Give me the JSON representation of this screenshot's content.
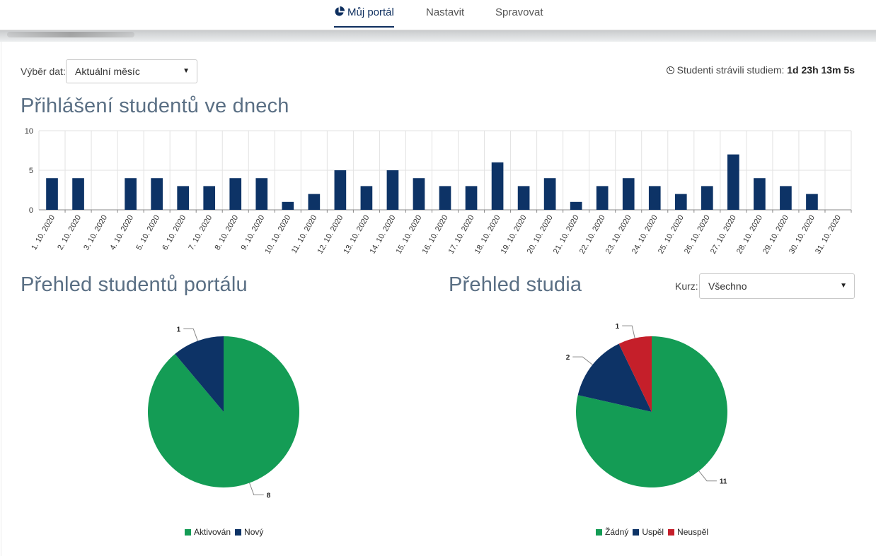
{
  "nav": {
    "items": [
      {
        "label": "Můj portál",
        "active": true,
        "icon": "pie-chart-icon"
      },
      {
        "label": "Nastavit",
        "active": false
      },
      {
        "label": "Spravovat",
        "active": false
      }
    ]
  },
  "filters": {
    "date_label": "Výběr dat:",
    "date_value": "Aktuální měsíc",
    "course_label": "Kurz:",
    "course_value": "Všechno"
  },
  "study_time": {
    "prefix": "Studenti strávili studiem:",
    "value": "1d 23h 13m 5s",
    "icon": "clock-icon"
  },
  "sections": {
    "logins_title": "Přihlášení studentů ve dnech",
    "students_title": "Přehled studentů portálu",
    "study_title": "Přehled studia"
  },
  "colors": {
    "bar": "#0d3366",
    "green": "#149c55",
    "navy": "#0d3366",
    "red": "#c51f2a",
    "nav_active": "#0d2e5e"
  },
  "chart_data": [
    {
      "type": "bar",
      "categories": [
        "1. 10. 2020",
        "2. 10. 2020",
        "3. 10. 2020",
        "4. 10. 2020",
        "5. 10. 2020",
        "6. 10. 2020",
        "7. 10. 2020",
        "8. 10. 2020",
        "9. 10. 2020",
        "10. 10. 2020",
        "11. 10. 2020",
        "12. 10. 2020",
        "13. 10. 2020",
        "14. 10. 2020",
        "15. 10. 2020",
        "16. 10. 2020",
        "17. 10. 2020",
        "18. 10. 2020",
        "19. 10. 2020",
        "20. 10. 2020",
        "21. 10. 2020",
        "22. 10. 2020",
        "23. 10. 2020",
        "24. 10. 2020",
        "25. 10. 2020",
        "26. 10. 2020",
        "27. 10. 2020",
        "28. 10. 2020",
        "29. 10. 2020",
        "30. 10. 2020",
        "31. 10. 2020"
      ],
      "values": [
        4,
        4,
        0,
        4,
        4,
        3,
        3,
        4,
        4,
        1,
        2,
        5,
        3,
        5,
        4,
        3,
        3,
        6,
        3,
        4,
        1,
        3,
        4,
        3,
        2,
        3,
        7,
        4,
        3,
        2,
        0
      ],
      "ylim": [
        0,
        10
      ],
      "yticks": [
        0,
        5,
        10
      ],
      "grid": true
    },
    {
      "type": "pie",
      "labels": [
        "Aktivován",
        "Nový"
      ],
      "values": [
        8,
        1
      ],
      "colors": [
        "#149c55",
        "#0d3366"
      ],
      "legend": "bottom"
    },
    {
      "type": "pie",
      "labels": [
        "Žádný",
        "Uspěl",
        "Neuspěl"
      ],
      "values": [
        11,
        2,
        1
      ],
      "colors": [
        "#149c55",
        "#0d3366",
        "#c51f2a"
      ],
      "legend": "bottom"
    }
  ]
}
